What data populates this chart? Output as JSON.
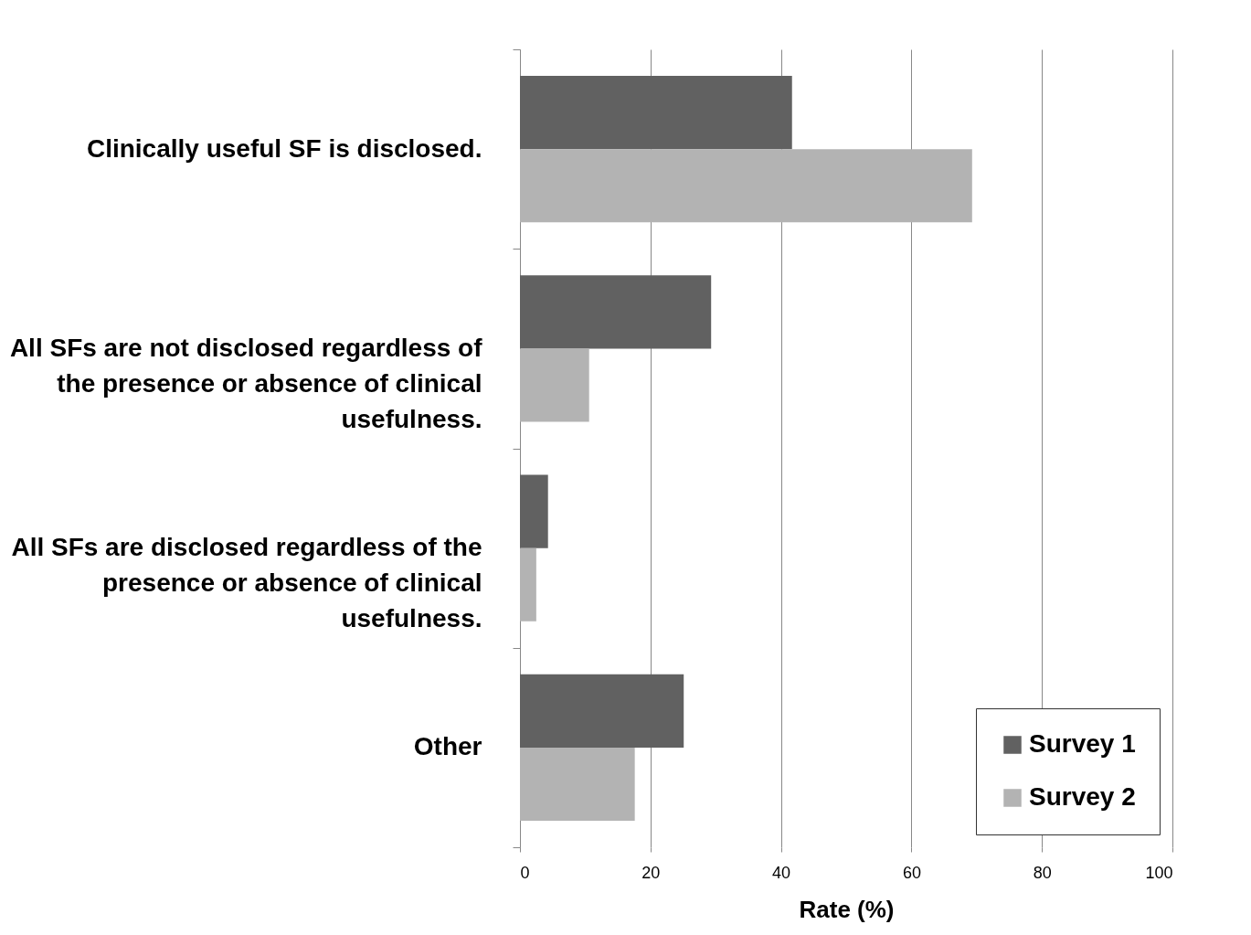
{
  "chart_data": {
    "type": "bar",
    "orientation": "horizontal",
    "xlabel": "Rate (%)",
    "categories": [
      "Clinically useful SF is disclosed.",
      "All SFs are not disclosed regardless of the presence or absence of clinical usefulness.",
      "All SFs are disclosed regardless of the presence or absence of clinical usefulness.",
      "Other"
    ],
    "series": [
      {
        "name": "Survey 1",
        "color": "#616161",
        "values": [
          41.7,
          29.3,
          4.3,
          25.1
        ]
      },
      {
        "name": "Survey 2",
        "color": "#b3b3b3",
        "values": [
          69.3,
          10.6,
          2.5,
          17.6
        ]
      }
    ],
    "xlim": [
      0,
      100
    ],
    "xticks": [
      0,
      20,
      40,
      60,
      80,
      100
    ],
    "grid": "x",
    "legend": "bottom right"
  }
}
